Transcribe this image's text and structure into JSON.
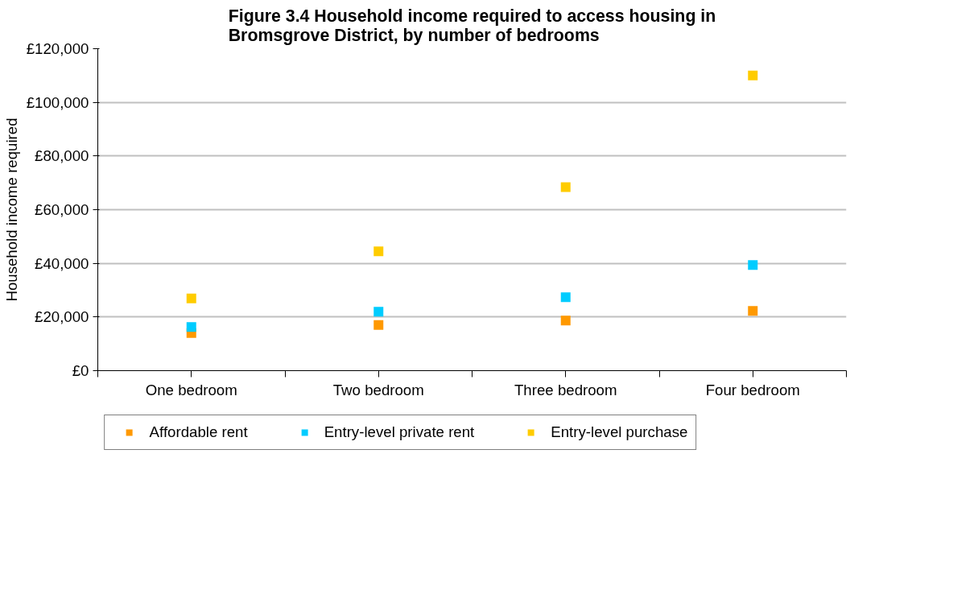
{
  "chart_data": {
    "type": "scatter",
    "title": "Figure 3.4 Household income required to access housing in Bromsgrove District, by number of bedrooms",
    "ylabel": "Household income required",
    "categories": [
      "One bedroom",
      "Two bedroom",
      "Three bedroom",
      "Four bedroom"
    ],
    "series": [
      {
        "name": "Affordable rent",
        "color": "#ff9900",
        "values": [
          14000,
          17000,
          18700,
          22300
        ]
      },
      {
        "name": "Entry-level private rent",
        "color": "#00ccff",
        "values": [
          16300,
          22000,
          27400,
          39400
        ]
      },
      {
        "name": "Entry-level purchase",
        "color": "#ffcc00",
        "values": [
          26900,
          44500,
          68400,
          110000
        ]
      }
    ],
    "marker": "square",
    "ylim": [
      0,
      120000
    ],
    "yticks": [
      {
        "value": 0,
        "label": "£0"
      },
      {
        "value": 20000,
        "label": "£20,000"
      },
      {
        "value": 40000,
        "label": "£40,000"
      },
      {
        "value": 60000,
        "label": "£60,000"
      },
      {
        "value": 80000,
        "label": "£80,000"
      },
      {
        "value": 100000,
        "label": "£100,000"
      },
      {
        "value": 120000,
        "label": "£120,000"
      }
    ],
    "grid": "y",
    "legend": "bottom"
  }
}
